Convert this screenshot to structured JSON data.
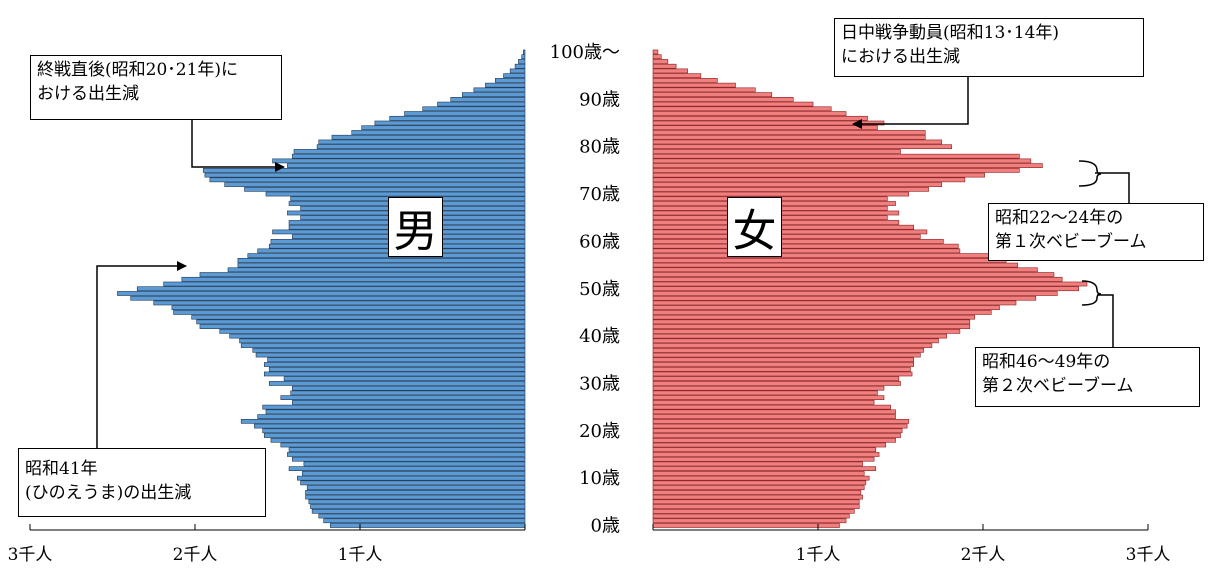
{
  "chart_data": {
    "type": "bar",
    "orientation": "horizontal",
    "subtype": "population-pyramid",
    "unit": "千人",
    "xlim": [
      0,
      3
    ],
    "age_range": [
      0,
      100
    ],
    "age_labels": [
      "0歳",
      "10歳",
      "20歳",
      "30歳",
      "40歳",
      "50歳",
      "60歳",
      "70歳",
      "80歳",
      "90歳",
      "100歳～"
    ],
    "left_ticks": [
      "3千人",
      "2千人",
      "1千人"
    ],
    "right_ticks": [
      "1千人",
      "2千人",
      "3千人"
    ],
    "series": [
      {
        "name": "男",
        "color": "#5b9bd5",
        "values": [
          1.18,
          1.22,
          1.25,
          1.29,
          1.3,
          1.31,
          1.33,
          1.33,
          1.32,
          1.36,
          1.38,
          1.35,
          1.43,
          1.34,
          1.41,
          1.44,
          1.43,
          1.48,
          1.54,
          1.58,
          1.59,
          1.64,
          1.72,
          1.62,
          1.57,
          1.59,
          1.41,
          1.48,
          1.42,
          1.41,
          1.55,
          1.46,
          1.58,
          1.55,
          1.58,
          1.56,
          1.63,
          1.65,
          1.72,
          1.73,
          1.79,
          1.85,
          1.97,
          1.99,
          2.02,
          2.13,
          2.14,
          2.25,
          2.39,
          2.47,
          2.35,
          2.19,
          2.08,
          1.97,
          1.8,
          1.74,
          1.74,
          1.68,
          1.62,
          1.55,
          1.54,
          1.41,
          1.53,
          1.43,
          1.43,
          1.36,
          1.44,
          1.36,
          1.43,
          1.42,
          1.57,
          1.7,
          1.82,
          1.91,
          1.94,
          1.95,
          1.44,
          1.53,
          1.41,
          1.4,
          1.26,
          1.25,
          1.17,
          1.05,
          0.99,
          0.91,
          0.82,
          0.73,
          0.62,
          0.53,
          0.45,
          0.38,
          0.31,
          0.24,
          0.18,
          0.13,
          0.09,
          0.06,
          0.04,
          0.02,
          0.01
        ]
      },
      {
        "name": "女",
        "color": "#f08080",
        "values": [
          1.13,
          1.17,
          1.19,
          1.22,
          1.25,
          1.25,
          1.27,
          1.26,
          1.28,
          1.29,
          1.31,
          1.28,
          1.35,
          1.27,
          1.34,
          1.37,
          1.35,
          1.41,
          1.47,
          1.5,
          1.51,
          1.54,
          1.55,
          1.47,
          1.47,
          1.44,
          1.34,
          1.4,
          1.36,
          1.4,
          1.5,
          1.49,
          1.57,
          1.56,
          1.58,
          1.58,
          1.62,
          1.64,
          1.69,
          1.73,
          1.78,
          1.86,
          1.92,
          1.92,
          1.95,
          2.05,
          2.1,
          2.2,
          2.32,
          2.45,
          2.58,
          2.63,
          2.48,
          2.43,
          2.33,
          2.21,
          2.14,
          2.1,
          1.86,
          1.85,
          1.76,
          1.62,
          1.66,
          1.58,
          1.49,
          1.42,
          1.49,
          1.42,
          1.47,
          1.42,
          1.55,
          1.67,
          1.75,
          1.89,
          2.01,
          2.22,
          2.36,
          2.29,
          2.22,
          1.5,
          1.81,
          1.75,
          1.65,
          1.65,
          1.36,
          1.4,
          1.3,
          1.17,
          1.08,
          0.97,
          0.85,
          0.72,
          0.62,
          0.5,
          0.39,
          0.29,
          0.21,
          0.14,
          0.09,
          0.05,
          0.03
        ]
      }
    ],
    "annotations": {
      "male_1": {
        "lines": [
          "終戦直後(昭和20･21年)に",
          "おける出生減"
        ]
      },
      "male_2": {
        "lines": [
          "昭和41年",
          "(ひのえうま)の出生減"
        ]
      },
      "female_1": {
        "lines": [
          "日中戦争動員(昭和13･14年)",
          "における出生減"
        ]
      },
      "female_2": {
        "lines": [
          "昭和22～24年の",
          "第１次ベビーブーム"
        ]
      },
      "female_3": {
        "lines": [
          "昭和46～49年の",
          "第２次ベビーブーム"
        ]
      }
    },
    "side_labels": {
      "male": "男",
      "female": "女"
    }
  }
}
